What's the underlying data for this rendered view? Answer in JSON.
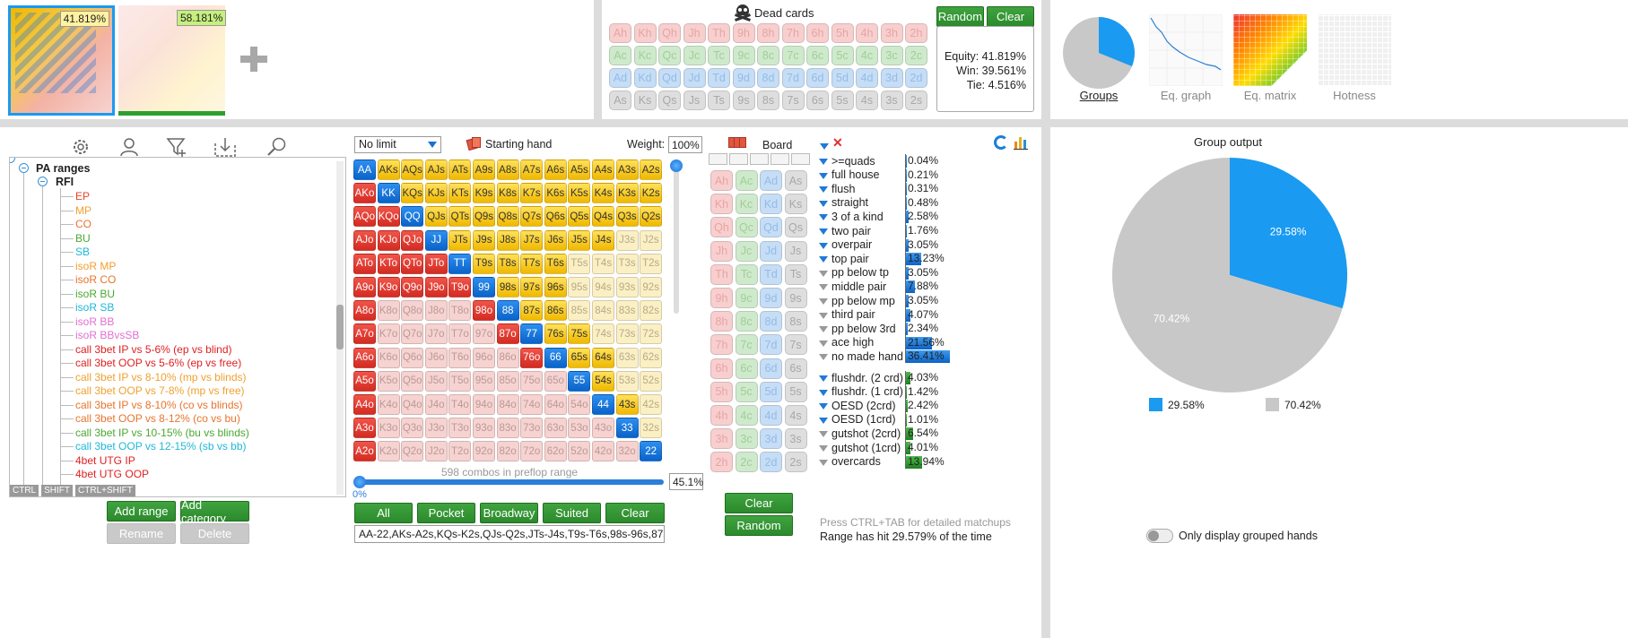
{
  "top_left": {
    "range1_pct": "41.819%",
    "range2_pct": "58.181%",
    "add_icon": "plus-icon"
  },
  "dead_cards": {
    "title": "Dead cards",
    "random_label": "Random",
    "clear_label": "Clear",
    "rows": [
      [
        "Ah",
        "Kh",
        "Qh",
        "Jh",
        "Th",
        "9h",
        "8h",
        "7h",
        "6h",
        "5h",
        "4h",
        "3h",
        "2h"
      ],
      [
        "Ac",
        "Kc",
        "Qc",
        "Jc",
        "Tc",
        "9c",
        "8c",
        "7c",
        "6c",
        "5c",
        "4c",
        "3c",
        "2c"
      ],
      [
        "Ad",
        "Kd",
        "Qd",
        "Jd",
        "Td",
        "9d",
        "8d",
        "7d",
        "6d",
        "5d",
        "4d",
        "3d",
        "2d"
      ],
      [
        "As",
        "Ks",
        "Qs",
        "Js",
        "Ts",
        "9s",
        "8s",
        "7s",
        "6s",
        "5s",
        "4s",
        "3s",
        "2s"
      ]
    ],
    "equity": "Equity: 41.819%",
    "win": "Win: 39.561%",
    "tie": "Tie: 4.516%"
  },
  "views": {
    "tabs": [
      "Groups",
      "Eq. graph",
      "Eq. matrix",
      "Hotness"
    ],
    "active": "Groups"
  },
  "tree": {
    "root": "PA ranges",
    "folder": "RFI",
    "items": [
      {
        "label": "EP",
        "color": "#e8452c"
      },
      {
        "label": "MP",
        "color": "#f0a030"
      },
      {
        "label": "CO",
        "color": "#e8742c"
      },
      {
        "label": "BU",
        "color": "#4aa832"
      },
      {
        "label": "SB",
        "color": "#1fb8d8"
      },
      {
        "label": "isoR MP",
        "color": "#f0a030"
      },
      {
        "label": "isoR CO",
        "color": "#e8742c"
      },
      {
        "label": "isoR BU",
        "color": "#4aa832"
      },
      {
        "label": "isoR SB",
        "color": "#1fb8d8"
      },
      {
        "label": "isoR BB",
        "color": "#e070d0"
      },
      {
        "label": "isoR BBvsSB",
        "color": "#e070d0"
      },
      {
        "label": "call 3bet IP vs 5-6% (ep vs blind)",
        "color": "#e02020"
      },
      {
        "label": "call 3bet OOP vs 5-6% (ep vs free)",
        "color": "#e02020"
      },
      {
        "label": "call 3bet IP vs 8-10% (mp vs blinds)",
        "color": "#f0a030"
      },
      {
        "label": "call 3bet OOP vs 7-8% (mp vs free)",
        "color": "#f0a030"
      },
      {
        "label": "call 3bet IP vs 8-10% (co vs blinds)",
        "color": "#e8742c"
      },
      {
        "label": "call 3bet OOP vs 8-12% (co vs bu)",
        "color": "#e8742c"
      },
      {
        "label": "call 3bet IP vs 10-15% (bu vs blinds)",
        "color": "#4aa832"
      },
      {
        "label": "call 3bet OOP vs 12-15% (sb vs bb)",
        "color": "#1fb8d8"
      },
      {
        "label": "4bet UTG IP",
        "color": "#e02020"
      },
      {
        "label": "4bet UTG OOP",
        "color": "#e02020"
      }
    ],
    "keys": [
      "CTRL",
      "SHIFT",
      "CTRL+SHIFT"
    ],
    "add_range": "Add range",
    "add_category": "Add category",
    "rename": "Rename",
    "delete": "Delete"
  },
  "matrix": {
    "limit": "No limit",
    "starting_hand": "Starting hand",
    "weight_label": "Weight:",
    "weight_value": "100%",
    "combos": "598 combos in preflop range",
    "slider_min": "0%",
    "slider_pct": "45.1%",
    "buttons": [
      "All",
      "Pocket",
      "Broadway",
      "Suited",
      "Clear"
    ],
    "range_text": "AA-22,AKs-A2s,KQs-K2s,QJs-Q2s,JTs-J4s,T9s-T6s,98s-96s,87s-86s,",
    "ranks": [
      "A",
      "K",
      "Q",
      "J",
      "T",
      "9",
      "8",
      "7",
      "6",
      "5",
      "4",
      "3",
      "2"
    ],
    "suited_incl": [
      "AKs",
      "AQs",
      "AJs",
      "ATs",
      "A9s",
      "A8s",
      "A7s",
      "A6s",
      "A5s",
      "A4s",
      "A3s",
      "A2s",
      "KQs",
      "KJs",
      "KTs",
      "K9s",
      "K8s",
      "K7s",
      "K6s",
      "K5s",
      "K4s",
      "K3s",
      "K2s",
      "QJs",
      "QTs",
      "Q9s",
      "Q8s",
      "Q7s",
      "Q6s",
      "Q5s",
      "Q4s",
      "Q3s",
      "Q2s",
      "JTs",
      "J9s",
      "J8s",
      "J7s",
      "J6s",
      "J5s",
      "J4s",
      "T9s",
      "T8s",
      "T7s",
      "T6s",
      "98s",
      "97s",
      "96s",
      "87s",
      "86s",
      "76s",
      "75s",
      "65s",
      "64s",
      "54s",
      "43s"
    ],
    "offsuit_incl": [
      "AKo",
      "AQo",
      "KQo",
      "AJo",
      "KJo",
      "QJo",
      "ATo",
      "KTo",
      "QTo",
      "JTo",
      "A9o",
      "K9o",
      "Q9o",
      "J9o",
      "T9o",
      "A8o",
      "98o",
      "A7o",
      "87o",
      "A6o",
      "76o",
      "A5o",
      "A4o",
      "A3o",
      "A2o"
    ]
  },
  "board": {
    "title": "Board",
    "columns": [
      [
        "Ah",
        "Kh",
        "Qh",
        "Jh",
        "Th",
        "9h",
        "8h",
        "7h",
        "6h",
        "5h",
        "4h",
        "3h",
        "2h"
      ],
      [
        "Ac",
        "Kc",
        "Qc",
        "Jc",
        "Tc",
        "9c",
        "8c",
        "7c",
        "6c",
        "5c",
        "4c",
        "3c",
        "2c"
      ],
      [
        "Ad",
        "Kd",
        "Qd",
        "Jd",
        "Td",
        "9d",
        "8d",
        "7d",
        "6d",
        "5d",
        "4d",
        "3d",
        "2d"
      ],
      [
        "As",
        "Ks",
        "Qs",
        "Js",
        "Ts",
        "9s",
        "8s",
        "7s",
        "6s",
        "5s",
        "4s",
        "3s",
        "2s"
      ]
    ],
    "clear_label": "Clear",
    "random_label": "Random"
  },
  "stats": {
    "made": [
      {
        "label": ">=quads",
        "pct": "0.04%",
        "value": 0.04,
        "filtered": true
      },
      {
        "label": "full house",
        "pct": "0.21%",
        "value": 0.21,
        "filtered": true
      },
      {
        "label": "flush",
        "pct": "0.31%",
        "value": 0.31,
        "filtered": true
      },
      {
        "label": "straight",
        "pct": "0.48%",
        "value": 0.48,
        "filtered": true
      },
      {
        "label": "3 of a kind",
        "pct": "2.58%",
        "value": 2.58,
        "filtered": true
      },
      {
        "label": "two pair",
        "pct": "1.76%",
        "value": 1.76,
        "filtered": true
      },
      {
        "label": "overpair",
        "pct": "3.05%",
        "value": 3.05,
        "filtered": true
      },
      {
        "label": "top pair",
        "pct": "13.23%",
        "value": 13.23,
        "filtered": true
      },
      {
        "label": "pp below tp",
        "pct": "3.05%",
        "value": 3.05,
        "filtered": false
      },
      {
        "label": "middle pair",
        "pct": "7.88%",
        "value": 7.88,
        "filtered": false
      },
      {
        "label": "pp below mp",
        "pct": "3.05%",
        "value": 3.05,
        "filtered": false
      },
      {
        "label": "third pair",
        "pct": "4.07%",
        "value": 4.07,
        "filtered": false
      },
      {
        "label": "pp below 3rd",
        "pct": "2.34%",
        "value": 2.34,
        "filtered": false
      },
      {
        "label": "ace high",
        "pct": "21.56%",
        "value": 21.56,
        "filtered": false
      },
      {
        "label": "no made hand",
        "pct": "36.41%",
        "value": 36.41,
        "filtered": false
      }
    ],
    "draws": [
      {
        "label": "flushdr. (2 crd)",
        "pct": "4.03%",
        "value": 4.03,
        "filtered": true
      },
      {
        "label": "flushdr. (1 crd)",
        "pct": "1.42%",
        "value": 1.42,
        "filtered": true
      },
      {
        "label": "OESD (2crd)",
        "pct": "2.42%",
        "value": 2.42,
        "filtered": true
      },
      {
        "label": "OESD (1crd)",
        "pct": "1.01%",
        "value": 1.01,
        "filtered": true
      },
      {
        "label": "gutshot (2crd)",
        "pct": "6.54%",
        "value": 6.54,
        "filtered": false
      },
      {
        "label": "gutshot (1crd)",
        "pct": "4.01%",
        "value": 4.01,
        "filtered": false
      },
      {
        "label": "overcards",
        "pct": "13.94%",
        "value": 13.94,
        "filtered": false
      }
    ],
    "hint": "Press CTRL+TAB for detailed matchups",
    "hit": "Range has hit 29.579% of the time"
  },
  "chart_data": {
    "type": "pie",
    "title": "Group output",
    "slices": [
      {
        "label": "29.58%",
        "value": 29.58,
        "color": "#1a9af0"
      },
      {
        "label": "70.42%",
        "value": 70.42,
        "color": "#c8c8c8"
      }
    ]
  },
  "group_output": {
    "title": "Group output",
    "toggle_label": "Only display grouped hands"
  },
  "colors": {
    "accent": "#1a9af0",
    "green": "#2e8f2e"
  }
}
